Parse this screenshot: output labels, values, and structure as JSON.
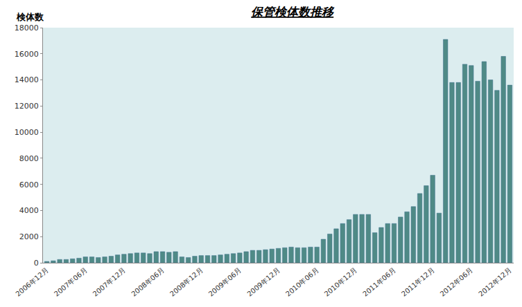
{
  "chart_data": {
    "type": "bar",
    "title": "保管検体数推移",
    "y_label": "検体数",
    "categories": [
      "2006年12月",
      null,
      null,
      null,
      null,
      null,
      "2007年06月",
      null,
      null,
      null,
      null,
      null,
      "2007年12月",
      null,
      null,
      null,
      null,
      null,
      "2008年06月",
      null,
      null,
      null,
      null,
      null,
      "2008年12月",
      null,
      null,
      null,
      null,
      null,
      "2009年06月",
      null,
      null,
      null,
      null,
      null,
      "2009年12月",
      null,
      null,
      null,
      null,
      null,
      "2010年06月",
      null,
      null,
      null,
      null,
      null,
      "2010年12月",
      null,
      null,
      null,
      null,
      null,
      "2011年06月",
      null,
      null,
      null,
      null,
      null,
      "2011年12月",
      null,
      null,
      null,
      null,
      null,
      "2012年06月",
      null,
      null,
      null,
      null,
      null,
      "2012年12月"
    ],
    "values": [
      100,
      150,
      250,
      250,
      300,
      350,
      450,
      450,
      400,
      450,
      500,
      600,
      650,
      700,
      750,
      750,
      700,
      850,
      850,
      800,
      850,
      450,
      400,
      500,
      550,
      550,
      550,
      600,
      650,
      700,
      750,
      850,
      950,
      950,
      1000,
      1050,
      1100,
      1150,
      1200,
      1150,
      1150,
      1200,
      1200,
      1800,
      2200,
      2600,
      3000,
      3300,
      3700,
      3700,
      3700,
      2300,
      2700,
      3000,
      3000,
      3500,
      3900,
      4300,
      5300,
      5900,
      6700,
      3800,
      17100,
      13800,
      13800,
      15200,
      15100,
      13900,
      15400,
      14000,
      13200,
      15800,
      13600
    ],
    "color": "#4f8a86",
    "ylim": [
      0,
      18000
    ],
    "yticks": [
      0,
      2000,
      4000,
      6000,
      8000,
      10000,
      12000,
      14000,
      16000,
      18000
    ],
    "grid": false
  }
}
